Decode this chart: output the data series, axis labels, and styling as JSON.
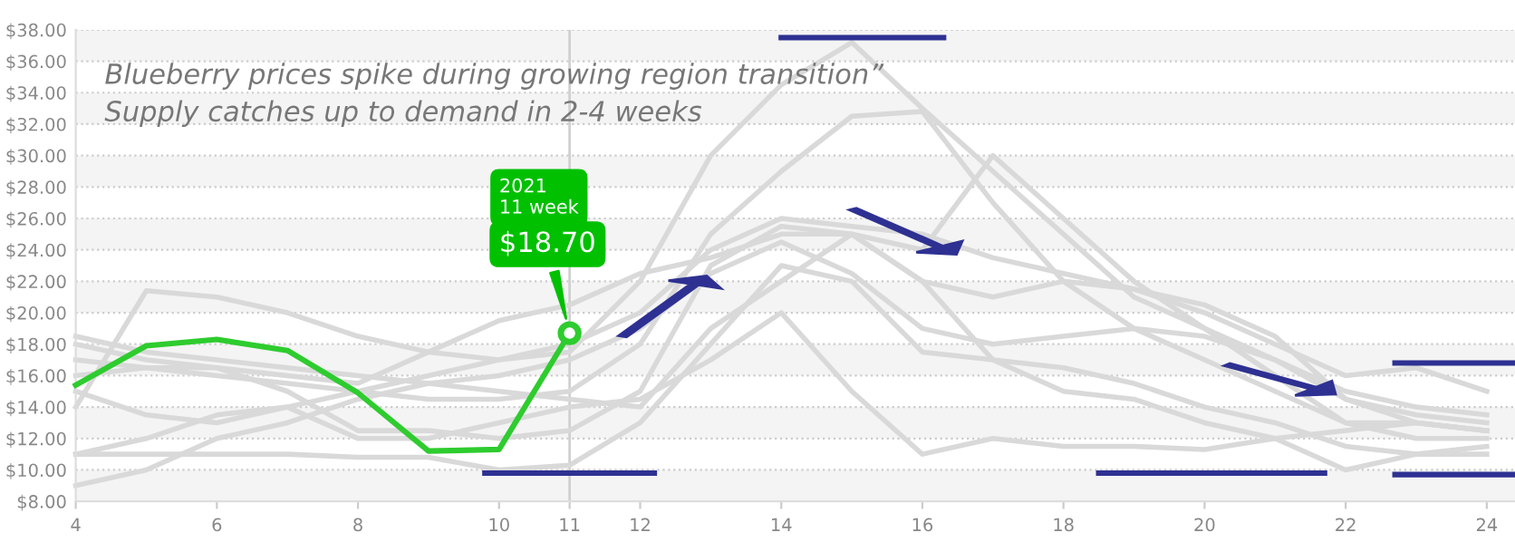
{
  "chart_data": {
    "type": "line",
    "x": [
      4,
      5,
      6,
      7,
      8,
      9,
      10,
      11,
      12,
      13,
      14,
      15,
      16,
      17,
      18,
      19,
      20,
      21,
      22,
      23,
      24
    ],
    "series": [
      {
        "color": "#d9d9d9",
        "values": [
          11,
          12,
          13.5,
          14,
          15,
          16,
          17,
          17.5,
          22,
          30,
          34.5,
          37.2,
          33,
          29,
          25,
          21,
          19,
          16,
          13,
          12,
          12
        ]
      },
      {
        "color": "#d9d9d9",
        "values": [
          17,
          16.5,
          16,
          15.5,
          15,
          14.5,
          14.5,
          15,
          18,
          25,
          29,
          32.5,
          32.8,
          27,
          22,
          19,
          17,
          15,
          13,
          13,
          12.5
        ]
      },
      {
        "color": "#d9d9d9",
        "values": [
          18.5,
          17.5,
          17,
          16.5,
          16,
          15.5,
          15,
          14.5,
          14,
          19,
          22,
          25,
          24,
          30,
          26,
          22,
          19,
          17,
          15,
          14,
          13.5
        ]
      },
      {
        "color": "#d9d9d9",
        "values": [
          14,
          21.4,
          21,
          20,
          18.5,
          17.5,
          17,
          18,
          20,
          24,
          26,
          25.5,
          25,
          23.5,
          22.5,
          21.5,
          20.5,
          18.5,
          14.5,
          13.5,
          13
        ]
      },
      {
        "color": "#d9d9d9",
        "values": [
          9,
          10,
          12,
          13,
          14.5,
          15.5,
          16,
          17,
          19,
          22.5,
          24.5,
          22.5,
          19,
          18,
          18.5,
          19,
          18.5,
          17,
          14.5,
          13,
          12.5
        ]
      },
      {
        "color": "#d9d9d9",
        "values": [
          11,
          11,
          11,
          11,
          10.8,
          10.8,
          10,
          10.3,
          13,
          18,
          23,
          22,
          17.5,
          17,
          16.5,
          15.5,
          14,
          13,
          11.5,
          11,
          11
        ]
      },
      {
        "color": "#d9d9d9",
        "values": [
          16,
          16.5,
          16.5,
          15,
          12.5,
          12.5,
          12,
          12.5,
          15,
          23,
          25.5,
          25,
          22,
          17,
          15,
          14.5,
          13,
          12,
          10,
          11,
          11.5
        ]
      },
      {
        "color": "#d9d9d9",
        "values": [
          15,
          13.5,
          13,
          14,
          12,
          12,
          13,
          14,
          14.5,
          17,
          20,
          15,
          11,
          12,
          11.5,
          11.5,
          11.3,
          12,
          12.5,
          13,
          12.5
        ]
      },
      {
        "color": "#d9d9d9",
        "values": [
          18,
          17,
          16.5,
          16,
          15.5,
          17.5,
          19.5,
          20.5,
          22.5,
          23.5,
          25,
          25,
          22,
          21,
          22,
          21.5,
          20,
          18,
          16,
          16.5,
          15
        ]
      },
      {
        "color": "#2ecc2e",
        "x": [
          4,
          5,
          6,
          7,
          8,
          9,
          10,
          11
        ],
        "values": [
          15.4,
          17.9,
          18.3,
          17.6,
          14.9,
          11.2,
          11.3,
          18.7
        ]
      },
      {
        "color": "#2e3192",
        "x": [
          9.8,
          12.2
        ],
        "values": [
          9.8,
          9.8
        ]
      },
      {
        "color": "#2e3192",
        "x": [
          14,
          16.3
        ],
        "values": [
          37.5,
          37.5
        ]
      },
      {
        "color": "#2e3192",
        "x": [
          18.5,
          21.7
        ],
        "values": [
          9.8,
          9.8
        ]
      },
      {
        "color": "#2e3192",
        "x": [
          22.7,
          24.4
        ],
        "values": [
          16.8,
          16.8
        ]
      },
      {
        "color": "#2e3192",
        "x": [
          22.7,
          24.4
        ],
        "values": [
          9.7,
          9.7
        ]
      }
    ],
    "xlim": [
      4,
      24.4
    ],
    "xticks": [
      4,
      6,
      8,
      10,
      11,
      12,
      14,
      16,
      18,
      20,
      22,
      24
    ],
    "ylim": [
      8,
      38
    ],
    "yticks": [
      {
        "value": 8,
        "label": "$8.00"
      },
      {
        "value": 10,
        "label": "$10.00"
      },
      {
        "value": 12,
        "label": "$12.00"
      },
      {
        "value": 14,
        "label": "$14.00"
      },
      {
        "value": 16,
        "label": "$16.00"
      },
      {
        "value": 18,
        "label": "$18.00"
      },
      {
        "value": 20,
        "label": "$20.00"
      },
      {
        "value": 22,
        "label": "$22.00"
      },
      {
        "value": 24,
        "label": "$24.00"
      },
      {
        "value": 26,
        "label": "$26.00"
      },
      {
        "value": 28,
        "label": "$28.00"
      },
      {
        "value": 30,
        "label": "$30.00"
      },
      {
        "value": 32,
        "label": "$32.00"
      },
      {
        "value": 34,
        "label": "$34.00"
      },
      {
        "value": 36,
        "label": "$36.00"
      },
      {
        "value": 38,
        "label": "$38.00"
      }
    ],
    "grid": "y",
    "bands": [
      {
        "axis": "y",
        "from": 8,
        "to": 10,
        "color": "#f4f4f4"
      },
      {
        "axis": "y",
        "from": 12,
        "to": 14,
        "color": "#f4f4f4"
      },
      {
        "axis": "y",
        "from": 16,
        "to": 18,
        "color": "#f4f4f4"
      },
      {
        "axis": "y",
        "from": 20,
        "to": 22,
        "color": "#f4f4f4"
      },
      {
        "axis": "y",
        "from": 24,
        "to": 26,
        "color": "#f4f4f4"
      },
      {
        "axis": "y",
        "from": 28,
        "to": 30,
        "color": "#f4f4f4"
      },
      {
        "axis": "y",
        "from": 32,
        "to": 34,
        "color": "#f4f4f4"
      },
      {
        "axis": "y",
        "from": 36,
        "to": 38,
        "color": "#f4f4f4"
      }
    ],
    "ref_lines": [
      {
        "axis": "x",
        "value": 11,
        "color": "#d0d0d0"
      }
    ],
    "annotations": [
      "Blueberry prices spike during growing region transition”\nSupply catches up to demand in 2-4 weeks",
      {
        "text": "2021\n11 week\n$18.70",
        "x": 11,
        "y": 18.7
      }
    ]
  }
}
